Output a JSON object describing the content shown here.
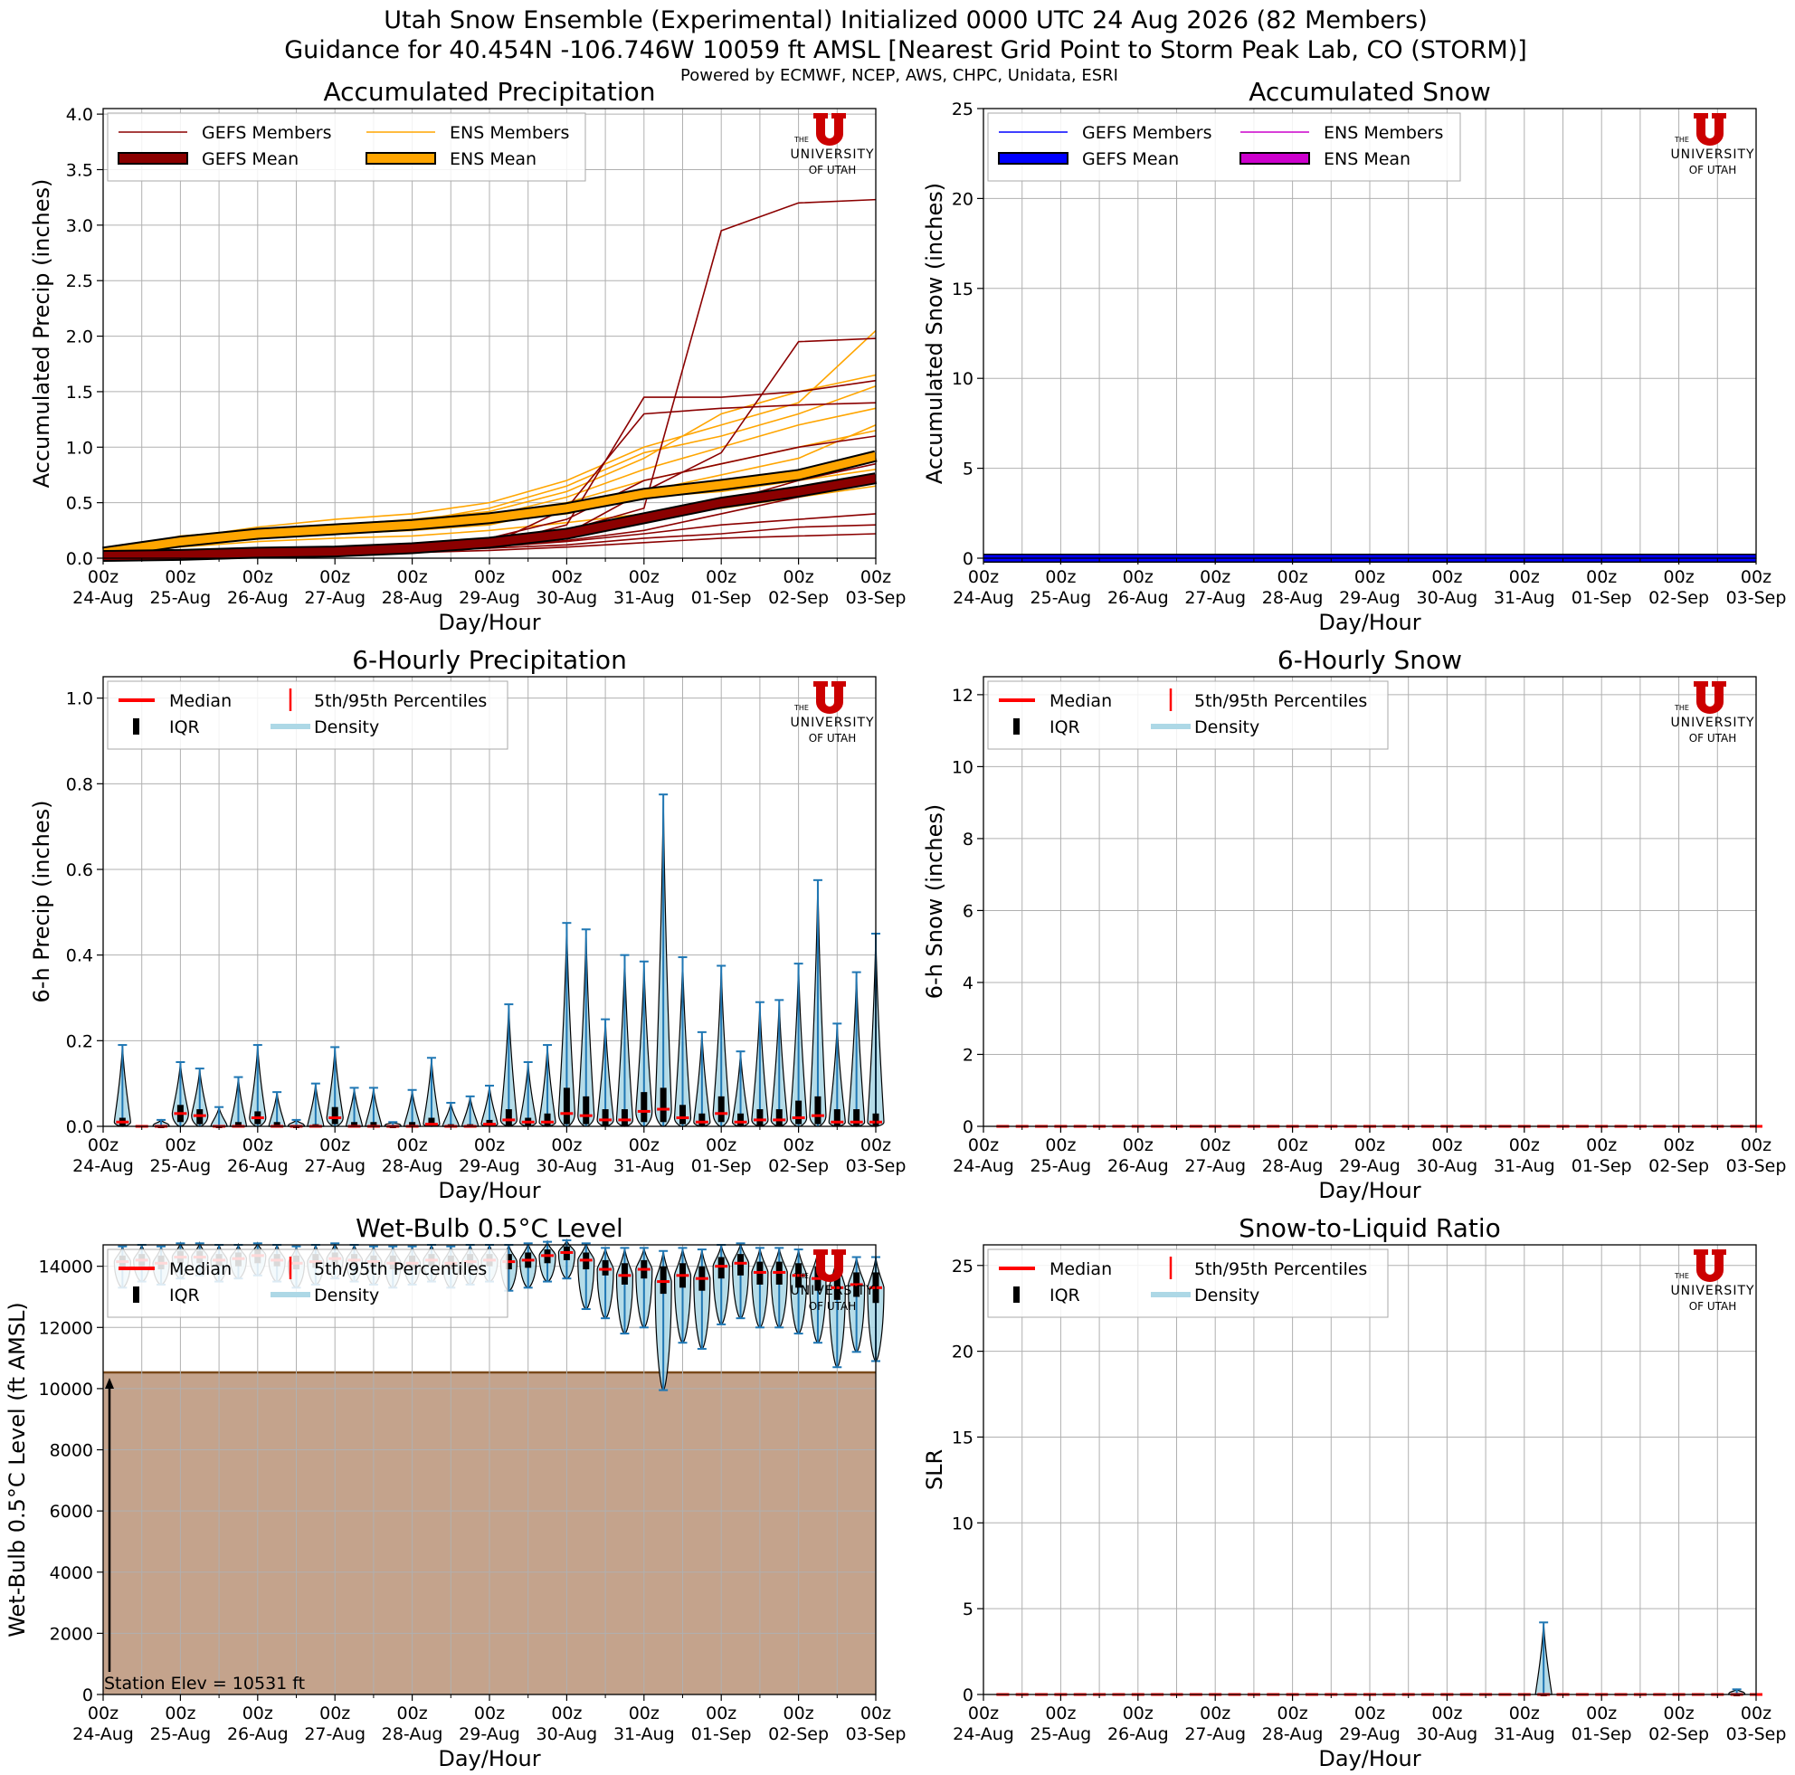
{
  "header": {
    "title_line1": "Utah Snow Ensemble (Experimental) Initialized 0000 UTC 24 Aug 2026 (82 Members)",
    "title_line2": "Guidance for 40.454N -106.746W 10059 ft AMSL [Nearest Grid Point to Storm Peak Lab, CO (STORM)]",
    "powered_by": "Powered by ECMWF, NCEP, AWS, CHPC, Unidata, ESRI"
  },
  "logo": {
    "line1": "THE",
    "line2": "UNIVERSITY",
    "line3": "OF UTAH"
  },
  "x_axis": {
    "label": "Day/Hour",
    "hour_label": "00z",
    "days": [
      "24-Aug",
      "25-Aug",
      "26-Aug",
      "27-Aug",
      "28-Aug",
      "29-Aug",
      "30-Aug",
      "31-Aug",
      "01-Sep",
      "02-Sep",
      "03-Sep"
    ]
  },
  "colors": {
    "gefs_member": "#8b0000",
    "gefs_mean": "#8b0000",
    "ens_member": "#ffa500",
    "ens_mean": "#ffa500",
    "gefs_snow": "#0000ff",
    "ens_snow": "#cc00cc",
    "median": "#ff0000",
    "iqr": "#000000",
    "density": "#add8e6",
    "whisker": "#1f77b4",
    "terrain": "#c4a38c",
    "terrain_edge": "#7a4a1a",
    "logo_red": "#cc0000"
  },
  "legends": {
    "accum_precip": [
      "GEFS Members",
      "ENS Members",
      "GEFS Mean",
      "ENS Mean"
    ],
    "accum_snow": [
      "GEFS Members",
      "ENS Members",
      "GEFS Mean",
      "ENS Mean"
    ],
    "violin": [
      "Median",
      "5th/95th Percentiles",
      "IQR",
      "Density"
    ]
  },
  "annotations": {
    "station_elev": "Station Elev = 10531 ft"
  },
  "chart_data": [
    {
      "type": "line",
      "title": "Accumulated Precipitation",
      "xlabel": "Day/Hour",
      "ylabel": "Accumulated Precip (inches)",
      "ylim": [
        0,
        4.05
      ],
      "yticks": [
        0.0,
        0.5,
        1.0,
        1.5,
        2.0,
        2.5,
        3.0,
        3.5,
        4.0
      ],
      "ytick_labels": [
        "0.0",
        "0.5",
        "1.0",
        "1.5",
        "2.0",
        "2.5",
        "3.0",
        "3.5",
        "4.0"
      ],
      "grid": true,
      "legend_position": "top-left",
      "x_days": [
        0,
        1,
        2,
        3,
        4,
        5,
        6,
        7,
        8,
        9,
        10
      ],
      "series": [
        {
          "name": "GEFS Mean",
          "values": [
            0.02,
            0.03,
            0.05,
            0.06,
            0.09,
            0.14,
            0.22,
            0.36,
            0.5,
            0.6,
            0.72
          ]
        },
        {
          "name": "ENS Mean",
          "values": [
            0.05,
            0.15,
            0.22,
            0.26,
            0.3,
            0.36,
            0.45,
            0.58,
            0.66,
            0.75,
            0.92
          ]
        },
        {
          "name": "GEFS Members",
          "members": [
            [
              0.02,
              0.03,
              0.04,
              0.05,
              0.07,
              0.12,
              0.3,
              1.45,
              1.45,
              1.5,
              1.6
            ],
            [
              0.02,
              0.04,
              0.05,
              0.07,
              0.1,
              0.15,
              0.25,
              0.45,
              2.95,
              3.2,
              3.23
            ],
            [
              0.02,
              0.03,
              0.05,
              0.06,
              0.09,
              0.15,
              0.22,
              0.6,
              0.95,
              1.95,
              1.98
            ],
            [
              0.02,
              0.02,
              0.03,
              0.05,
              0.07,
              0.1,
              0.15,
              0.22,
              0.3,
              0.35,
              0.4
            ],
            [
              0.02,
              0.03,
              0.04,
              0.06,
              0.08,
              0.12,
              0.45,
              1.3,
              1.35,
              1.38,
              1.4
            ],
            [
              0.02,
              0.02,
              0.03,
              0.04,
              0.06,
              0.09,
              0.12,
              0.18,
              0.22,
              0.28,
              0.3
            ],
            [
              0.02,
              0.03,
              0.05,
              0.07,
              0.1,
              0.18,
              0.35,
              0.7,
              0.85,
              1.0,
              1.1
            ],
            [
              0.02,
              0.03,
              0.04,
              0.05,
              0.08,
              0.1,
              0.16,
              0.25,
              0.4,
              0.55,
              0.7
            ],
            [
              0.02,
              0.02,
              0.03,
              0.04,
              0.05,
              0.07,
              0.1,
              0.14,
              0.18,
              0.2,
              0.22
            ],
            [
              0.02,
              0.03,
              0.04,
              0.06,
              0.09,
              0.13,
              0.2,
              0.4,
              0.5,
              0.7,
              0.85
            ]
          ]
        },
        {
          "name": "ENS Members",
          "members": [
            [
              0.05,
              0.2,
              0.25,
              0.3,
              0.33,
              0.45,
              0.65,
              0.95,
              1.1,
              1.3,
              1.55
            ],
            [
              0.05,
              0.18,
              0.28,
              0.35,
              0.4,
              0.5,
              0.7,
              1.0,
              1.2,
              1.4,
              2.05
            ],
            [
              0.05,
              0.12,
              0.2,
              0.22,
              0.25,
              0.3,
              0.45,
              0.6,
              0.75,
              0.9,
              1.2
            ],
            [
              0.05,
              0.15,
              0.22,
              0.28,
              0.3,
              0.38,
              0.55,
              0.8,
              1.0,
              1.2,
              1.35
            ],
            [
              0.05,
              0.1,
              0.15,
              0.18,
              0.2,
              0.25,
              0.32,
              0.4,
              0.45,
              0.55,
              0.65
            ],
            [
              0.05,
              0.16,
              0.24,
              0.3,
              0.35,
              0.42,
              0.6,
              0.9,
              1.3,
              1.5,
              1.65
            ],
            [
              0.05,
              0.14,
              0.2,
              0.25,
              0.28,
              0.33,
              0.4,
              0.55,
              0.6,
              0.7,
              0.8
            ],
            [
              0.05,
              0.17,
              0.23,
              0.27,
              0.32,
              0.4,
              0.5,
              0.7,
              0.85,
              1.0,
              1.15
            ]
          ]
        }
      ]
    },
    {
      "type": "line",
      "title": "Accumulated Snow",
      "xlabel": "Day/Hour",
      "ylabel": "Accumulated Snow (inches)",
      "ylim": [
        0,
        25
      ],
      "yticks": [
        0,
        5,
        10,
        15,
        20,
        25
      ],
      "ytick_labels": [
        "0",
        "5",
        "10",
        "15",
        "20",
        "25"
      ],
      "grid": true,
      "legend_position": "top-left",
      "x_days": [
        0,
        10
      ],
      "series": [
        {
          "name": "GEFS Mean",
          "values": [
            0,
            0
          ]
        },
        {
          "name": "ENS Mean",
          "values": [
            0,
            0
          ]
        }
      ]
    },
    {
      "type": "violin",
      "title": "6-Hourly Precipitation",
      "xlabel": "Day/Hour",
      "ylabel": "6-h Precip (inches)",
      "ylim": [
        0,
        1.05
      ],
      "yticks": [
        0.0,
        0.2,
        0.4,
        0.6,
        0.8,
        1.0
      ],
      "ytick_labels": [
        "0.0",
        "0.2",
        "0.4",
        "0.6",
        "0.8",
        "1.0"
      ],
      "grid": true,
      "legend_position": "top-left",
      "step_hours": 6,
      "p95": [
        0.19,
        0.0,
        0.015,
        0.15,
        0.135,
        0.045,
        0.115,
        0.19,
        0.08,
        0.015,
        0.1,
        0.185,
        0.09,
        0.09,
        0.01,
        0.085,
        0.16,
        0.055,
        0.07,
        0.095,
        0.285,
        0.15,
        0.19,
        0.475,
        0.46,
        0.25,
        0.4,
        0.385,
        0.775,
        0.395,
        0.22,
        0.375,
        0.175,
        0.29,
        0.295,
        0.38,
        0.575,
        0.24,
        0.36,
        0.45
      ],
      "p75": [
        0.02,
        0.0,
        0.0,
        0.05,
        0.04,
        0.0,
        0.01,
        0.035,
        0.01,
        0.0,
        0.005,
        0.045,
        0.01,
        0.01,
        0.0,
        0.01,
        0.02,
        0.005,
        0.005,
        0.015,
        0.04,
        0.02,
        0.03,
        0.09,
        0.07,
        0.04,
        0.04,
        0.08,
        0.09,
        0.05,
        0.03,
        0.07,
        0.03,
        0.04,
        0.04,
        0.06,
        0.07,
        0.04,
        0.04,
        0.03
      ],
      "median": [
        0.01,
        0.0,
        0.0,
        0.03,
        0.025,
        0.0,
        0.0,
        0.02,
        0.0,
        0.0,
        0.0,
        0.02,
        0.0,
        0.0,
        0.0,
        0.0,
        0.005,
        0.0,
        0.0,
        0.005,
        0.015,
        0.01,
        0.01,
        0.03,
        0.025,
        0.015,
        0.015,
        0.035,
        0.04,
        0.02,
        0.01,
        0.03,
        0.01,
        0.015,
        0.015,
        0.02,
        0.025,
        0.01,
        0.01,
        0.01
      ],
      "p25": [
        0.0,
        0.0,
        0.0,
        0.01,
        0.005,
        0.0,
        0.0,
        0.005,
        0.0,
        0.0,
        0.0,
        0.005,
        0.0,
        0.0,
        0.0,
        0.0,
        0.0,
        0.0,
        0.0,
        0.0,
        0.0,
        0.0,
        0.0,
        0.005,
        0.005,
        0.0,
        0.0,
        0.01,
        0.01,
        0.005,
        0.0,
        0.01,
        0.0,
        0.0,
        0.0,
        0.005,
        0.005,
        0.0,
        0.0,
        0.0
      ]
    },
    {
      "type": "violin",
      "title": "6-Hourly Snow",
      "xlabel": "Day/Hour",
      "ylabel": "6-h Snow (inches)",
      "ylim": [
        0,
        12.5
      ],
      "yticks": [
        0,
        2,
        4,
        6,
        8,
        10,
        12
      ],
      "ytick_labels": [
        "0",
        "2",
        "4",
        "6",
        "8",
        "10",
        "12"
      ],
      "grid": true,
      "legend_position": "top-left",
      "step_hours": 6,
      "p95": [
        0,
        0,
        0,
        0,
        0,
        0,
        0,
        0,
        0,
        0,
        0,
        0,
        0,
        0,
        0,
        0,
        0,
        0,
        0,
        0,
        0,
        0,
        0,
        0,
        0,
        0,
        0,
        0,
        0,
        0,
        0,
        0,
        0,
        0,
        0,
        0,
        0,
        0,
        0,
        0
      ],
      "p75": [
        0,
        0,
        0,
        0,
        0,
        0,
        0,
        0,
        0,
        0,
        0,
        0,
        0,
        0,
        0,
        0,
        0,
        0,
        0,
        0,
        0,
        0,
        0,
        0,
        0,
        0,
        0,
        0,
        0,
        0,
        0,
        0,
        0,
        0,
        0,
        0,
        0,
        0,
        0,
        0
      ],
      "median": [
        0,
        0,
        0,
        0,
        0,
        0,
        0,
        0,
        0,
        0,
        0,
        0,
        0,
        0,
        0,
        0,
        0,
        0,
        0,
        0,
        0,
        0,
        0,
        0,
        0,
        0,
        0,
        0,
        0,
        0,
        0,
        0,
        0,
        0,
        0,
        0,
        0,
        0,
        0,
        0
      ],
      "p25": [
        0,
        0,
        0,
        0,
        0,
        0,
        0,
        0,
        0,
        0,
        0,
        0,
        0,
        0,
        0,
        0,
        0,
        0,
        0,
        0,
        0,
        0,
        0,
        0,
        0,
        0,
        0,
        0,
        0,
        0,
        0,
        0,
        0,
        0,
        0,
        0,
        0,
        0,
        0,
        0
      ]
    },
    {
      "type": "violin",
      "title": "Wet-Bulb 0.5°C Level",
      "xlabel": "Day/Hour",
      "ylabel": "Wet-Bulb 0.5°C Level (ft AMSL)",
      "ylim": [
        0,
        14700
      ],
      "yticks": [
        0,
        2000,
        4000,
        6000,
        8000,
        10000,
        12000,
        14000
      ],
      "ytick_labels": [
        "0",
        "2000",
        "4000",
        "6000",
        "8000",
        "10000",
        "12000",
        "14000"
      ],
      "grid": true,
      "legend_position": "top-left",
      "station_elevation": 10531,
      "step_hours": 6,
      "p5": [
        13300,
        13500,
        13400,
        13600,
        13700,
        13500,
        13600,
        13700,
        13500,
        13300,
        13400,
        13600,
        13500,
        13400,
        13300,
        13400,
        13500,
        13300,
        13400,
        13500,
        13200,
        13300,
        13500,
        13600,
        12600,
        12300,
        11800,
        12000,
        9950,
        11500,
        11300,
        12100,
        12300,
        12000,
        12000,
        11800,
        11500,
        10700,
        11200,
        10900
      ],
      "p25": [
        13900,
        14000,
        13900,
        14100,
        14100,
        14000,
        14000,
        14100,
        14000,
        13900,
        13950,
        14050,
        14000,
        13950,
        13900,
        13900,
        14000,
        13900,
        13950,
        14000,
        13900,
        13950,
        14100,
        14200,
        13900,
        13700,
        13400,
        13600,
        13100,
        13300,
        13200,
        13600,
        13700,
        13400,
        13400,
        13300,
        13200,
        12900,
        13000,
        12800
      ],
      "median": [
        14150,
        14200,
        14100,
        14300,
        14300,
        14200,
        14250,
        14350,
        14200,
        14100,
        14150,
        14250,
        14200,
        14150,
        14100,
        14100,
        14200,
        14100,
        14150,
        14200,
        14150,
        14200,
        14350,
        14450,
        14200,
        13900,
        13700,
        13900,
        13500,
        13700,
        13600,
        14000,
        14100,
        13800,
        13800,
        13700,
        13600,
        13300,
        13400,
        13300
      ],
      "p75": [
        14350,
        14400,
        14350,
        14500,
        14500,
        14400,
        14450,
        14550,
        14400,
        14350,
        14400,
        14450,
        14400,
        14350,
        14350,
        14350,
        14400,
        14350,
        14400,
        14400,
        14400,
        14450,
        14550,
        14650,
        14450,
        14200,
        14100,
        14200,
        14000,
        14100,
        14000,
        14300,
        14400,
        14150,
        14150,
        14100,
        14000,
        13800,
        13800,
        13800
      ],
      "p95": [
        14650,
        14700,
        14650,
        14750,
        14750,
        14700,
        14700,
        14750,
        14700,
        14650,
        14700,
        14750,
        14700,
        14650,
        14650,
        14650,
        14700,
        14650,
        14700,
        14700,
        14700,
        14750,
        14800,
        14850,
        14750,
        14600,
        14600,
        14600,
        14500,
        14600,
        14550,
        14700,
        14750,
        14600,
        14600,
        14550,
        14500,
        14400,
        14300,
        14300
      ]
    },
    {
      "type": "violin",
      "title": "Snow-to-Liquid Ratio",
      "xlabel": "Day/Hour",
      "ylabel": "SLR",
      "ylim": [
        0,
        26.2
      ],
      "yticks": [
        0,
        5,
        10,
        15,
        20,
        25
      ],
      "ytick_labels": [
        "0",
        "5",
        "10",
        "15",
        "20",
        "25"
      ],
      "grid": true,
      "legend_position": "top-left",
      "step_hours": 6,
      "p95": [
        0,
        0,
        0,
        0,
        0,
        0,
        0,
        0,
        0,
        0,
        0,
        0,
        0,
        0,
        0,
        0,
        0,
        0,
        0,
        0,
        0,
        0,
        0,
        0,
        0,
        0,
        0,
        0,
        4.2,
        0,
        0,
        0,
        0,
        0,
        0,
        0,
        0,
        0,
        0.3,
        0
      ],
      "p75": [
        0,
        0,
        0,
        0,
        0,
        0,
        0,
        0,
        0,
        0,
        0,
        0,
        0,
        0,
        0,
        0,
        0,
        0,
        0,
        0,
        0,
        0,
        0,
        0,
        0,
        0,
        0,
        0,
        0,
        0,
        0,
        0,
        0,
        0,
        0,
        0,
        0,
        0,
        0,
        0
      ],
      "median": [
        0,
        0,
        0,
        0,
        0,
        0,
        0,
        0,
        0,
        0,
        0,
        0,
        0,
        0,
        0,
        0,
        0,
        0,
        0,
        0,
        0,
        0,
        0,
        0,
        0,
        0,
        0,
        0,
        0,
        0,
        0,
        0,
        0,
        0,
        0,
        0,
        0,
        0,
        0,
        0
      ],
      "p25": [
        0,
        0,
        0,
        0,
        0,
        0,
        0,
        0,
        0,
        0,
        0,
        0,
        0,
        0,
        0,
        0,
        0,
        0,
        0,
        0,
        0,
        0,
        0,
        0,
        0,
        0,
        0,
        0,
        0,
        0,
        0,
        0,
        0,
        0,
        0,
        0,
        0,
        0,
        0,
        0
      ]
    }
  ]
}
